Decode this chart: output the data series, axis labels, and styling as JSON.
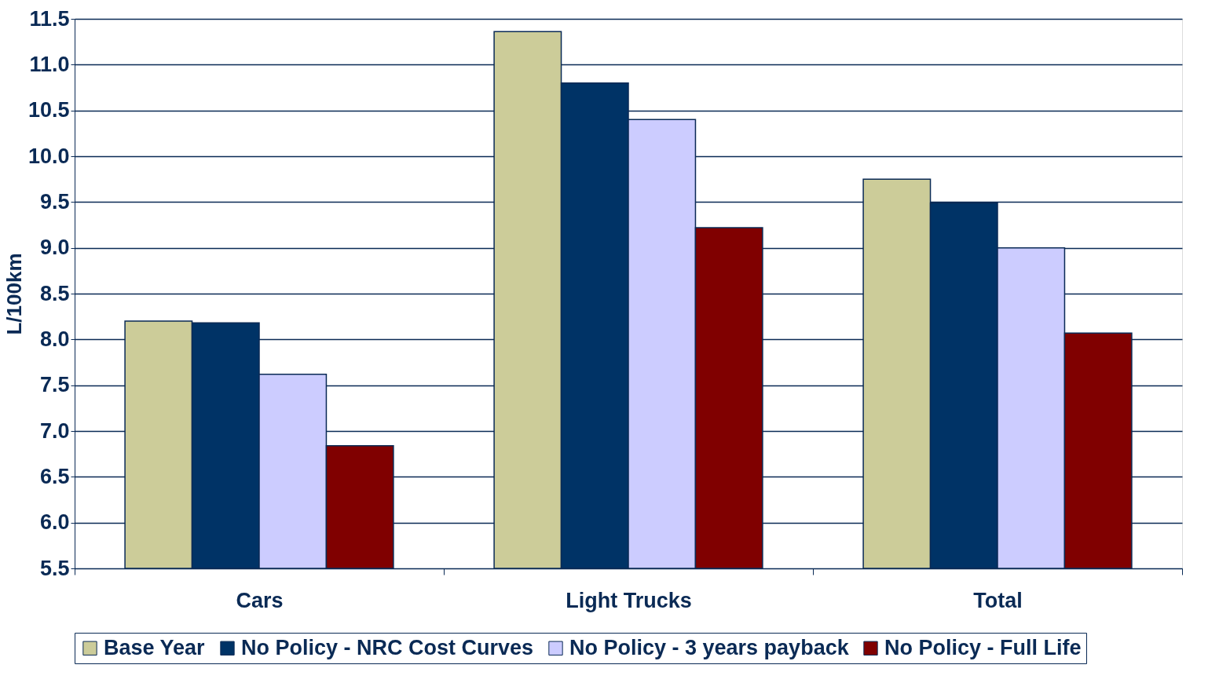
{
  "chart_data": {
    "type": "bar",
    "ylabel": "L/100km",
    "categories": [
      "Cars",
      "Light Trucks",
      "Total"
    ],
    "series": [
      {
        "name": "Base Year",
        "color": "#cccc99",
        "values": [
          8.2,
          11.36,
          9.75
        ]
      },
      {
        "name": "No Policy - NRC Cost Curves",
        "color": "#003366",
        "values": [
          8.18,
          10.8,
          9.49
        ]
      },
      {
        "name": "No Policy - 3 years payback",
        "color": "#ccccff",
        "values": [
          7.62,
          10.4,
          9.0
        ]
      },
      {
        "name": "No Policy - Full Life",
        "color": "#800000",
        "values": [
          6.84,
          9.22,
          8.07
        ]
      }
    ],
    "ylim": [
      5.5,
      11.5
    ],
    "yticks": [
      {
        "value": 5.5,
        "label": "5.5"
      },
      {
        "value": 6,
        "label": "6.0"
      },
      {
        "value": 6.5,
        "label": "6.5"
      },
      {
        "value": 7,
        "label": "7.0"
      },
      {
        "value": 7.5,
        "label": "7.5"
      },
      {
        "value": 8,
        "label": "8.0"
      },
      {
        "value": 8.5,
        "label": "8.5"
      },
      {
        "value": 9,
        "label": "9.0"
      },
      {
        "value": 9.5,
        "label": "9.5"
      },
      {
        "value": 10,
        "label": "10.0"
      },
      {
        "value": 10.5,
        "label": "10.5"
      },
      {
        "value": 11,
        "label": "11.0"
      },
      {
        "value": 11.5,
        "label": "11.5"
      }
    ],
    "grid": "y",
    "legend": "bottom"
  }
}
